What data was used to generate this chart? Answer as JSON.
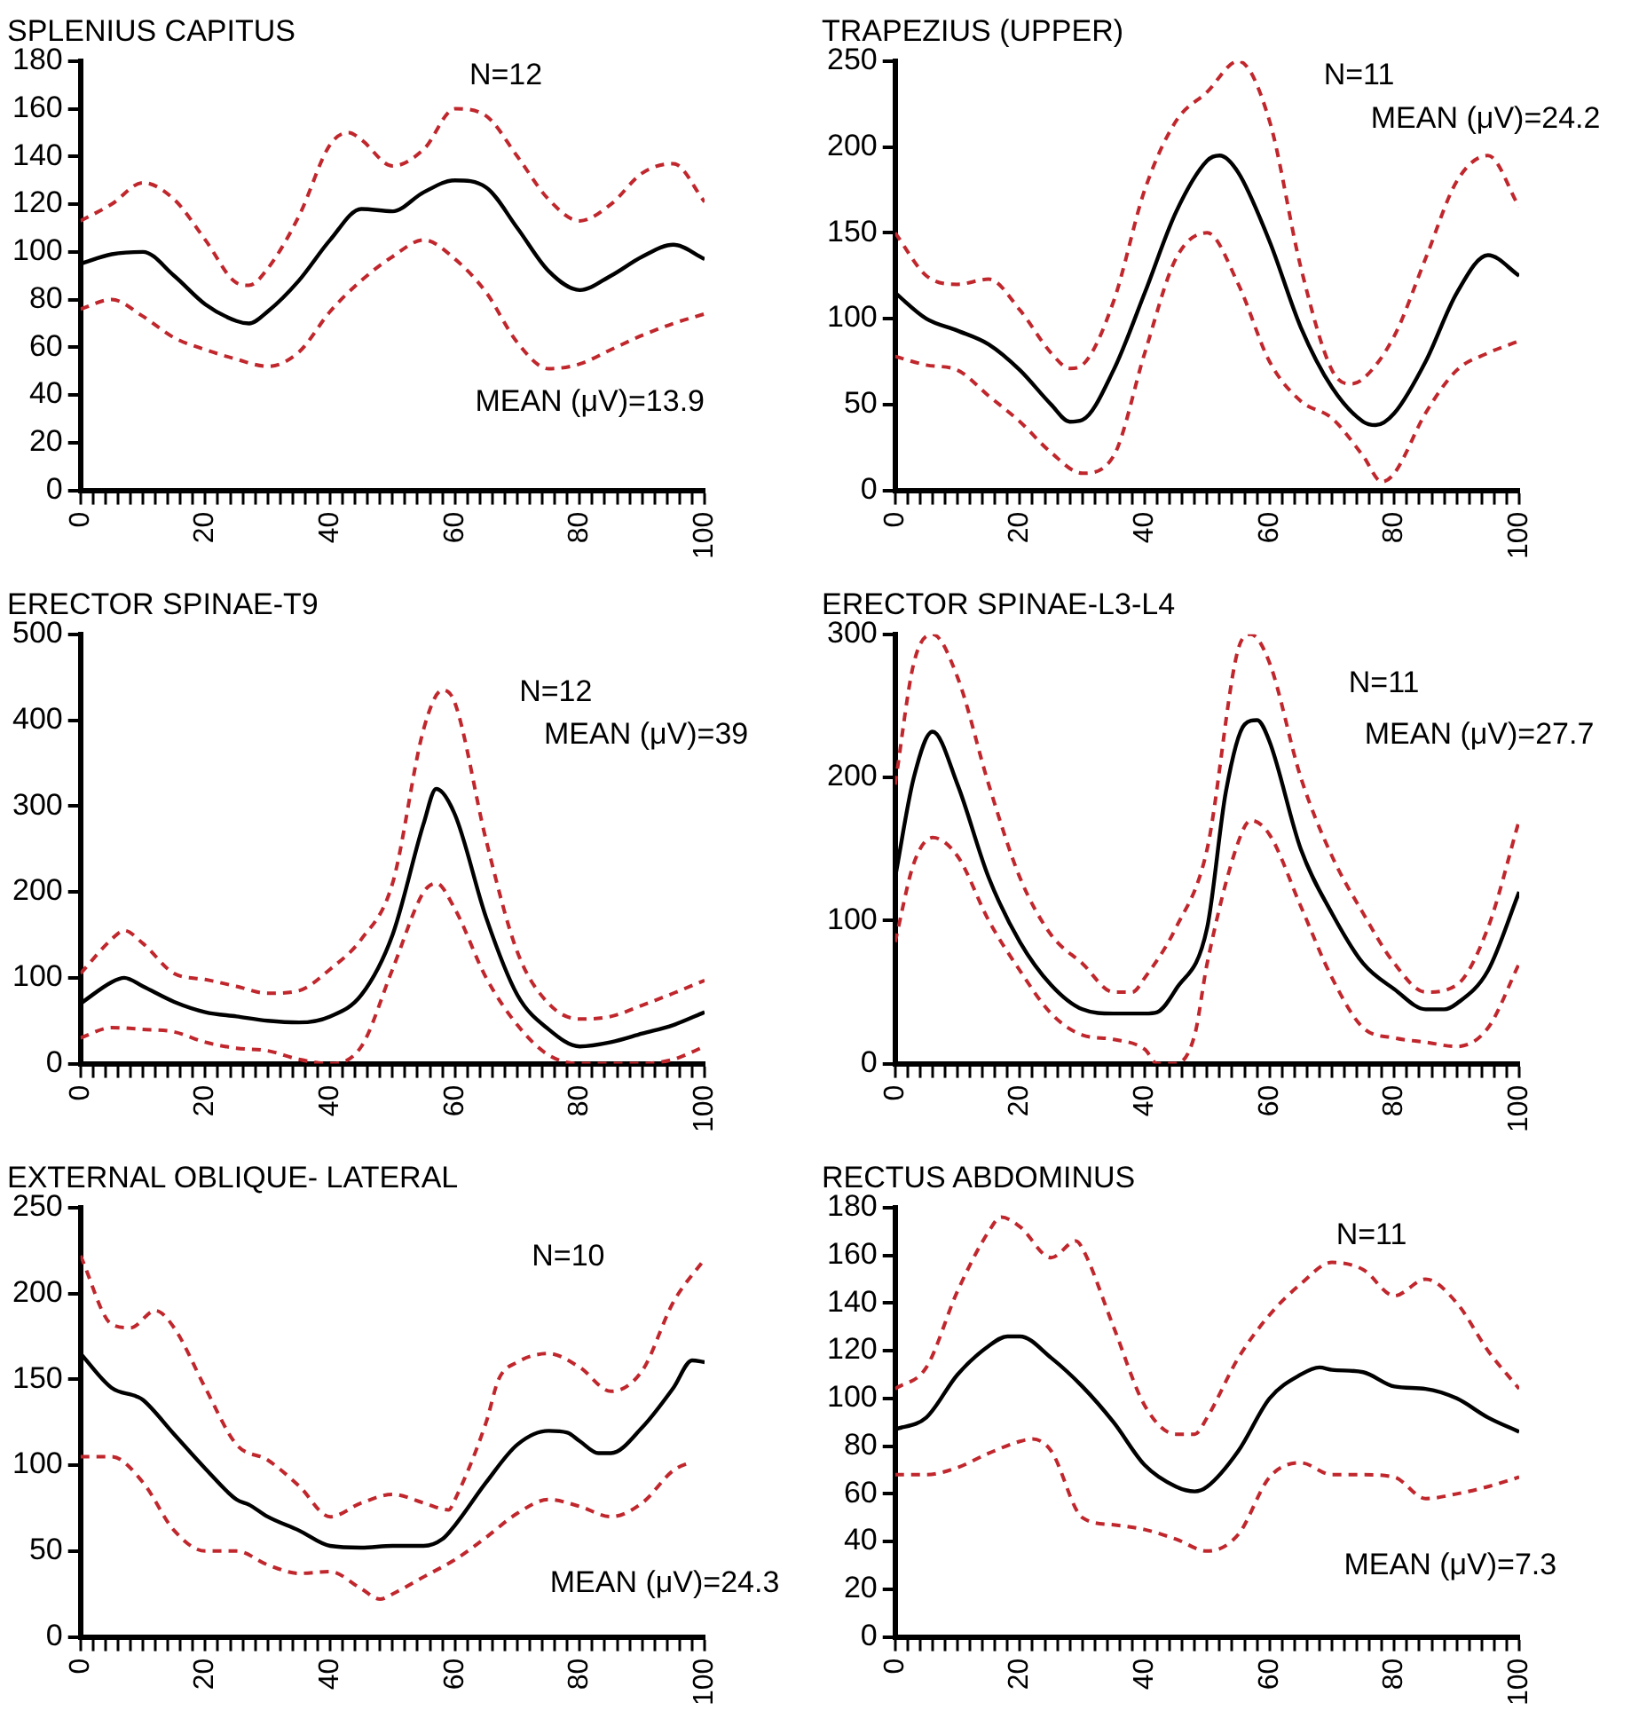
{
  "chart_data": [
    {
      "type": "line",
      "title": "SPLENIUS CAPITUS",
      "annotations": [
        "N=12",
        "MEAN (μV)=13.9"
      ],
      "xlim": [
        0,
        100
      ],
      "ylim": [
        0,
        180
      ],
      "yticks": [
        0,
        20,
        40,
        60,
        80,
        100,
        120,
        140,
        160,
        180
      ],
      "xticks": [
        0,
        {
          "value": 2,
          "label": null
        },
        {
          "value": 4,
          "label": null
        },
        {
          "value": 6,
          "label": null
        },
        {
          "value": 8,
          "label": null
        },
        {
          "value": 10,
          "label": null
        },
        {
          "value": 12,
          "label": null
        },
        {
          "value": 14,
          "label": null
        },
        {
          "value": 16,
          "label": null
        },
        {
          "value": 18,
          "label": null
        },
        20,
        {
          "value": 22,
          "label": null
        },
        {
          "value": 24,
          "label": null
        },
        {
          "value": 26,
          "label": null
        },
        {
          "value": 28,
          "label": null
        },
        {
          "value": 30,
          "label": null
        },
        {
          "value": 32,
          "label": null
        },
        {
          "value": 34,
          "label": null
        },
        {
          "value": 36,
          "label": null
        },
        {
          "value": 38,
          "label": null
        },
        40,
        {
          "value": 42,
          "label": null
        },
        {
          "value": 44,
          "label": null
        },
        {
          "value": 46,
          "label": null
        },
        {
          "value": 48,
          "label": null
        },
        {
          "value": 50,
          "label": null
        },
        {
          "value": 52,
          "label": null
        },
        {
          "value": 54,
          "label": null
        },
        {
          "value": 56,
          "label": null
        },
        {
          "value": 58,
          "label": null
        },
        60,
        {
          "value": 62,
          "label": null
        },
        {
          "value": 64,
          "label": null
        },
        {
          "value": 66,
          "label": null
        },
        {
          "value": 68,
          "label": null
        },
        {
          "value": 70,
          "label": null
        },
        {
          "value": 72,
          "label": null
        },
        {
          "value": 74,
          "label": null
        },
        {
          "value": 76,
          "label": null
        },
        {
          "value": 78,
          "label": null
        },
        80,
        {
          "value": 82,
          "label": null
        },
        {
          "value": 84,
          "label": null
        },
        {
          "value": 86,
          "label": null
        },
        {
          "value": 88,
          "label": null
        },
        {
          "value": 90,
          "label": null
        },
        {
          "value": 92,
          "label": null
        },
        {
          "value": 94,
          "label": null
        },
        {
          "value": 96,
          "label": null
        },
        {
          "value": 98,
          "label": null
        },
        100
      ],
      "grid": false,
      "legend": false,
      "marker": "none",
      "series": [
        {
          "color": "#000000",
          "line_style": "solid",
          "x": [
            0,
            5,
            10,
            15,
            20,
            25,
            27,
            30,
            35,
            40,
            45,
            50,
            55,
            60,
            65,
            70,
            75,
            80,
            85,
            90,
            95,
            100
          ],
          "values": [
            95,
            99,
            100,
            90,
            78,
            71,
            70,
            75,
            88,
            105,
            118,
            117,
            125,
            130,
            127,
            110,
            92,
            84,
            90,
            98,
            103,
            97
          ]
        },
        {
          "color": "#c0272d",
          "line_style": "dashed",
          "x": [
            0,
            5,
            10,
            15,
            20,
            25,
            27,
            30,
            35,
            40,
            43,
            45,
            50,
            55,
            60,
            65,
            70,
            75,
            80,
            85,
            90,
            95,
            100
          ],
          "values": [
            113,
            120,
            129,
            122,
            105,
            87,
            86,
            93,
            115,
            145,
            150,
            147,
            136,
            143,
            160,
            157,
            140,
            122,
            113,
            120,
            133,
            137,
            121
          ]
        },
        {
          "color": "#c0272d",
          "line_style": "dashed",
          "x": [
            0,
            5,
            10,
            15,
            20,
            25,
            30,
            35,
            40,
            45,
            50,
            55,
            60,
            65,
            70,
            75,
            80,
            85,
            90,
            95,
            100
          ],
          "values": [
            76,
            80,
            73,
            64,
            59,
            55,
            52,
            58,
            75,
            88,
            98,
            105,
            97,
            83,
            62,
            51,
            53,
            59,
            65,
            70,
            74
          ]
        }
      ]
    },
    {
      "type": "line",
      "title": "TRAPEZIUS (UPPER)",
      "annotations": [
        "N=11",
        "MEAN (μV)=24.2"
      ],
      "xlim": [
        0,
        100
      ],
      "ylim": [
        0,
        250
      ],
      "yticks": [
        0,
        50,
        100,
        150,
        200,
        250
      ],
      "xticks": [
        0,
        {
          "value": 2,
          "label": null
        },
        {
          "value": 4,
          "label": null
        },
        {
          "value": 6,
          "label": null
        },
        {
          "value": 8,
          "label": null
        },
        {
          "value": 10,
          "label": null
        },
        {
          "value": 12,
          "label": null
        },
        {
          "value": 14,
          "label": null
        },
        {
          "value": 16,
          "label": null
        },
        {
          "value": 18,
          "label": null
        },
        20,
        {
          "value": 22,
          "label": null
        },
        {
          "value": 24,
          "label": null
        },
        {
          "value": 26,
          "label": null
        },
        {
          "value": 28,
          "label": null
        },
        {
          "value": 30,
          "label": null
        },
        {
          "value": 32,
          "label": null
        },
        {
          "value": 34,
          "label": null
        },
        {
          "value": 36,
          "label": null
        },
        {
          "value": 38,
          "label": null
        },
        40,
        {
          "value": 42,
          "label": null
        },
        {
          "value": 44,
          "label": null
        },
        {
          "value": 46,
          "label": null
        },
        {
          "value": 48,
          "label": null
        },
        {
          "value": 50,
          "label": null
        },
        {
          "value": 52,
          "label": null
        },
        {
          "value": 54,
          "label": null
        },
        {
          "value": 56,
          "label": null
        },
        {
          "value": 58,
          "label": null
        },
        60,
        {
          "value": 62,
          "label": null
        },
        {
          "value": 64,
          "label": null
        },
        {
          "value": 66,
          "label": null
        },
        {
          "value": 68,
          "label": null
        },
        {
          "value": 70,
          "label": null
        },
        {
          "value": 72,
          "label": null
        },
        {
          "value": 74,
          "label": null
        },
        {
          "value": 76,
          "label": null
        },
        {
          "value": 78,
          "label": null
        },
        80,
        {
          "value": 82,
          "label": null
        },
        {
          "value": 84,
          "label": null
        },
        {
          "value": 86,
          "label": null
        },
        {
          "value": 88,
          "label": null
        },
        {
          "value": 90,
          "label": null
        },
        {
          "value": 92,
          "label": null
        },
        {
          "value": 94,
          "label": null
        },
        {
          "value": 96,
          "label": null
        },
        {
          "value": 98,
          "label": null
        },
        100
      ],
      "grid": false,
      "legend": false,
      "marker": "none",
      "series": [
        {
          "color": "#000000",
          "line_style": "solid",
          "x": [
            0,
            5,
            10,
            15,
            20,
            25,
            28,
            30,
            35,
            40,
            45,
            50,
            52,
            55,
            60,
            65,
            70,
            75,
            77,
            80,
            85,
            90,
            95,
            100
          ],
          "values": [
            115,
            100,
            93,
            85,
            70,
            50,
            40,
            41,
            70,
            115,
            162,
            192,
            195,
            185,
            145,
            95,
            60,
            40,
            38,
            45,
            75,
            115,
            137,
            125
          ]
        },
        {
          "color": "#c0272d",
          "line_style": "dashed",
          "x": [
            0,
            5,
            10,
            15,
            20,
            25,
            28,
            30,
            35,
            40,
            45,
            50,
            55,
            60,
            65,
            70,
            73,
            75,
            80,
            85,
            90,
            95,
            100
          ],
          "values": [
            150,
            125,
            120,
            123,
            105,
            80,
            71,
            73,
            110,
            175,
            215,
            232,
            250,
            215,
            130,
            70,
            62,
            65,
            90,
            135,
            180,
            195,
            165
          ]
        },
        {
          "color": "#c0272d",
          "line_style": "dashed",
          "x": [
            0,
            5,
            10,
            15,
            20,
            25,
            30,
            35,
            40,
            45,
            50,
            55,
            60,
            65,
            70,
            75,
            78,
            80,
            85,
            90,
            95,
            100
          ],
          "values": [
            78,
            73,
            70,
            55,
            40,
            22,
            10,
            20,
            80,
            135,
            150,
            120,
            75,
            52,
            42,
            20,
            5,
            10,
            45,
            70,
            80,
            87
          ]
        }
      ]
    },
    {
      "type": "line",
      "title": "ERECTOR SPINAE-T9",
      "annotations": [
        "N=12",
        "MEAN (μV)=39"
      ],
      "xlim": [
        0,
        100
      ],
      "ylim": [
        0,
        500
      ],
      "yticks": [
        0,
        100,
        200,
        300,
        400,
        500
      ],
      "xticks": [
        0,
        {
          "value": 2,
          "label": null
        },
        {
          "value": 4,
          "label": null
        },
        {
          "value": 6,
          "label": null
        },
        {
          "value": 8,
          "label": null
        },
        {
          "value": 10,
          "label": null
        },
        {
          "value": 12,
          "label": null
        },
        {
          "value": 14,
          "label": null
        },
        {
          "value": 16,
          "label": null
        },
        {
          "value": 18,
          "label": null
        },
        20,
        {
          "value": 22,
          "label": null
        },
        {
          "value": 24,
          "label": null
        },
        {
          "value": 26,
          "label": null
        },
        {
          "value": 28,
          "label": null
        },
        {
          "value": 30,
          "label": null
        },
        {
          "value": 32,
          "label": null
        },
        {
          "value": 34,
          "label": null
        },
        {
          "value": 36,
          "label": null
        },
        {
          "value": 38,
          "label": null
        },
        40,
        {
          "value": 42,
          "label": null
        },
        {
          "value": 44,
          "label": null
        },
        {
          "value": 46,
          "label": null
        },
        {
          "value": 48,
          "label": null
        },
        {
          "value": 50,
          "label": null
        },
        {
          "value": 52,
          "label": null
        },
        {
          "value": 54,
          "label": null
        },
        {
          "value": 56,
          "label": null
        },
        {
          "value": 58,
          "label": null
        },
        60,
        {
          "value": 62,
          "label": null
        },
        {
          "value": 64,
          "label": null
        },
        {
          "value": 66,
          "label": null
        },
        {
          "value": 68,
          "label": null
        },
        {
          "value": 70,
          "label": null
        },
        {
          "value": 72,
          "label": null
        },
        {
          "value": 74,
          "label": null
        },
        {
          "value": 76,
          "label": null
        },
        {
          "value": 78,
          "label": null
        },
        80,
        {
          "value": 82,
          "label": null
        },
        {
          "value": 84,
          "label": null
        },
        {
          "value": 86,
          "label": null
        },
        {
          "value": 88,
          "label": null
        },
        {
          "value": 90,
          "label": null
        },
        {
          "value": 92,
          "label": null
        },
        {
          "value": 94,
          "label": null
        },
        {
          "value": 96,
          "label": null
        },
        {
          "value": 98,
          "label": null
        },
        100
      ],
      "grid": false,
      "legend": false,
      "marker": "none",
      "series": [
        {
          "color": "#000000",
          "line_style": "solid",
          "x": [
            0,
            5,
            7,
            10,
            15,
            20,
            25,
            30,
            35,
            40,
            45,
            50,
            55,
            57,
            60,
            65,
            70,
            75,
            80,
            85,
            90,
            95,
            100
          ],
          "values": [
            70,
            95,
            100,
            90,
            72,
            60,
            55,
            50,
            48,
            55,
            80,
            150,
            280,
            320,
            290,
            170,
            80,
            40,
            20,
            25,
            35,
            45,
            60
          ]
        },
        {
          "color": "#c0272d",
          "line_style": "dashed",
          "x": [
            0,
            5,
            7,
            10,
            15,
            20,
            25,
            30,
            35,
            40,
            45,
            50,
            55,
            58,
            60,
            65,
            70,
            75,
            80,
            85,
            90,
            95,
            100
          ],
          "values": [
            105,
            145,
            155,
            140,
            105,
            98,
            90,
            82,
            85,
            110,
            145,
            210,
            390,
            435,
            420,
            260,
            130,
            70,
            52,
            55,
            68,
            82,
            97
          ]
        },
        {
          "color": "#c0272d",
          "line_style": "dashed",
          "x": [
            0,
            5,
            10,
            15,
            20,
            25,
            30,
            35,
            40,
            45,
            50,
            55,
            57,
            60,
            65,
            70,
            75,
            80,
            85,
            90,
            95,
            100
          ],
          "values": [
            30,
            42,
            40,
            37,
            25,
            18,
            15,
            5,
            0,
            20,
            110,
            200,
            210,
            180,
            100,
            45,
            10,
            0,
            0,
            0,
            5,
            20
          ]
        }
      ]
    },
    {
      "type": "line",
      "title": "ERECTOR SPINAE-L3-L4",
      "annotations": [
        "N=11",
        "MEAN (μV)=27.7"
      ],
      "xlim": [
        0,
        100
      ],
      "ylim": [
        0,
        300
      ],
      "yticks": [
        0,
        100,
        200,
        300
      ],
      "xticks": [
        0,
        {
          "value": 2,
          "label": null
        },
        {
          "value": 4,
          "label": null
        },
        {
          "value": 6,
          "label": null
        },
        {
          "value": 8,
          "label": null
        },
        {
          "value": 10,
          "label": null
        },
        {
          "value": 12,
          "label": null
        },
        {
          "value": 14,
          "label": null
        },
        {
          "value": 16,
          "label": null
        },
        {
          "value": 18,
          "label": null
        },
        20,
        {
          "value": 22,
          "label": null
        },
        {
          "value": 24,
          "label": null
        },
        {
          "value": 26,
          "label": null
        },
        {
          "value": 28,
          "label": null
        },
        {
          "value": 30,
          "label": null
        },
        {
          "value": 32,
          "label": null
        },
        {
          "value": 34,
          "label": null
        },
        {
          "value": 36,
          "label": null
        },
        {
          "value": 38,
          "label": null
        },
        40,
        {
          "value": 42,
          "label": null
        },
        {
          "value": 44,
          "label": null
        },
        {
          "value": 46,
          "label": null
        },
        {
          "value": 48,
          "label": null
        },
        {
          "value": 50,
          "label": null
        },
        {
          "value": 52,
          "label": null
        },
        {
          "value": 54,
          "label": null
        },
        {
          "value": 56,
          "label": null
        },
        {
          "value": 58,
          "label": null
        },
        60,
        {
          "value": 62,
          "label": null
        },
        {
          "value": 64,
          "label": null
        },
        {
          "value": 66,
          "label": null
        },
        {
          "value": 68,
          "label": null
        },
        {
          "value": 70,
          "label": null
        },
        {
          "value": 72,
          "label": null
        },
        {
          "value": 74,
          "label": null
        },
        {
          "value": 76,
          "label": null
        },
        {
          "value": 78,
          "label": null
        },
        80,
        {
          "value": 82,
          "label": null
        },
        {
          "value": 84,
          "label": null
        },
        {
          "value": 86,
          "label": null
        },
        {
          "value": 88,
          "label": null
        },
        {
          "value": 90,
          "label": null
        },
        {
          "value": 92,
          "label": null
        },
        {
          "value": 94,
          "label": null
        },
        {
          "value": 96,
          "label": null
        },
        {
          "value": 98,
          "label": null
        },
        100
      ],
      "grid": false,
      "legend": false,
      "marker": "none",
      "series": [
        {
          "color": "#000000",
          "line_style": "solid",
          "x": [
            0,
            3,
            6,
            10,
            15,
            20,
            25,
            30,
            35,
            40,
            42,
            45,
            50,
            53,
            56,
            58,
            60,
            65,
            70,
            75,
            80,
            85,
            88,
            90,
            95,
            100
          ],
          "values": [
            130,
            200,
            232,
            195,
            130,
            85,
            55,
            38,
            35,
            35,
            36,
            52,
            95,
            190,
            237,
            240,
            225,
            150,
            105,
            70,
            52,
            38,
            38,
            42,
            65,
            120
          ]
        },
        {
          "color": "#c0272d",
          "line_style": "dashed",
          "x": [
            0,
            3,
            6,
            10,
            15,
            20,
            25,
            30,
            35,
            38,
            40,
            45,
            50,
            55,
            57,
            60,
            65,
            70,
            75,
            80,
            85,
            90,
            95,
            100
          ],
          "values": [
            195,
            280,
            300,
            270,
            195,
            130,
            90,
            70,
            50,
            50,
            60,
            95,
            150,
            290,
            300,
            280,
            200,
            145,
            105,
            70,
            50,
            55,
            95,
            170
          ]
        },
        {
          "color": "#c0272d",
          "line_style": "dashed",
          "x": [
            0,
            3,
            6,
            10,
            15,
            20,
            25,
            30,
            35,
            40,
            42,
            45,
            48,
            50,
            55,
            57,
            60,
            65,
            70,
            75,
            80,
            85,
            90,
            95,
            100
          ],
          "values": [
            85,
            140,
            158,
            145,
            100,
            65,
            35,
            20,
            17,
            10,
            0,
            0,
            20,
            70,
            155,
            170,
            160,
            110,
            60,
            25,
            18,
            15,
            12,
            25,
            70
          ]
        }
      ]
    },
    {
      "type": "line",
      "title": "EXTERNAL OBLIQUE- LATERAL",
      "annotations": [
        "N=10",
        "MEAN (μV)=24.3"
      ],
      "xlim": [
        0,
        100
      ],
      "ylim": [
        0,
        250
      ],
      "yticks": [
        0,
        50,
        100,
        150,
        200,
        250
      ],
      "xticks": [
        0,
        {
          "value": 2,
          "label": null
        },
        {
          "value": 4,
          "label": null
        },
        {
          "value": 6,
          "label": null
        },
        {
          "value": 8,
          "label": null
        },
        {
          "value": 10,
          "label": null
        },
        {
          "value": 12,
          "label": null
        },
        {
          "value": 14,
          "label": null
        },
        {
          "value": 16,
          "label": null
        },
        {
          "value": 18,
          "label": null
        },
        20,
        {
          "value": 22,
          "label": null
        },
        {
          "value": 24,
          "label": null
        },
        {
          "value": 26,
          "label": null
        },
        {
          "value": 28,
          "label": null
        },
        {
          "value": 30,
          "label": null
        },
        {
          "value": 32,
          "label": null
        },
        {
          "value": 34,
          "label": null
        },
        {
          "value": 36,
          "label": null
        },
        {
          "value": 38,
          "label": null
        },
        40,
        {
          "value": 42,
          "label": null
        },
        {
          "value": 44,
          "label": null
        },
        {
          "value": 46,
          "label": null
        },
        {
          "value": 48,
          "label": null
        },
        {
          "value": 50,
          "label": null
        },
        {
          "value": 52,
          "label": null
        },
        {
          "value": 54,
          "label": null
        },
        {
          "value": 56,
          "label": null
        },
        {
          "value": 58,
          "label": null
        },
        60,
        {
          "value": 62,
          "label": null
        },
        {
          "value": 64,
          "label": null
        },
        {
          "value": 66,
          "label": null
        },
        {
          "value": 68,
          "label": null
        },
        {
          "value": 70,
          "label": null
        },
        {
          "value": 72,
          "label": null
        },
        {
          "value": 74,
          "label": null
        },
        {
          "value": 76,
          "label": null
        },
        {
          "value": 78,
          "label": null
        },
        80,
        {
          "value": 82,
          "label": null
        },
        {
          "value": 84,
          "label": null
        },
        {
          "value": 86,
          "label": null
        },
        {
          "value": 88,
          "label": null
        },
        {
          "value": 90,
          "label": null
        },
        {
          "value": 92,
          "label": null
        },
        {
          "value": 94,
          "label": null
        },
        {
          "value": 96,
          "label": null
        },
        {
          "value": 98,
          "label": null
        },
        100
      ],
      "grid": false,
      "legend": false,
      "marker": "none",
      "series": [
        {
          "color": "#000000",
          "line_style": "solid",
          "x": [
            0,
            5,
            9,
            10,
            15,
            20,
            25,
            27,
            30,
            35,
            40,
            45,
            50,
            55,
            58,
            60,
            65,
            70,
            75,
            78,
            80,
            83,
            85,
            90,
            95,
            98,
            100
          ],
          "values": [
            165,
            145,
            140,
            138,
            118,
            98,
            80,
            77,
            70,
            62,
            53,
            52,
            53,
            53,
            57,
            65,
            90,
            112,
            120,
            119,
            114,
            107,
            107,
            122,
            145,
            161,
            160
          ]
        },
        {
          "color": "#c0272d",
          "line_style": "dashed",
          "x": [
            0,
            5,
            8,
            12,
            15,
            20,
            25,
            30,
            35,
            40,
            45,
            50,
            55,
            59,
            60,
            65,
            67,
            70,
            75,
            80,
            85,
            90,
            95,
            100
          ],
          "values": [
            222,
            182,
            180,
            190,
            180,
            145,
            112,
            103,
            88,
            70,
            78,
            83,
            78,
            74,
            80,
            125,
            150,
            160,
            165,
            157,
            143,
            155,
            195,
            220
          ]
        },
        {
          "color": "#c0272d",
          "line_style": "dashed",
          "x": [
            0,
            5,
            10,
            15,
            20,
            25,
            30,
            35,
            40,
            45,
            48,
            50,
            55,
            60,
            65,
            70,
            75,
            80,
            85,
            90,
            95,
            98
          ],
          "values": [
            105,
            105,
            90,
            62,
            50,
            50,
            42,
            37,
            38,
            28,
            22,
            25,
            35,
            45,
            58,
            72,
            80,
            76,
            70,
            78,
            97,
            102
          ]
        }
      ]
    },
    {
      "type": "line",
      "title": "RECTUS ABDOMINUS",
      "annotations": [
        "N=11",
        "MEAN (μV)=7.3"
      ],
      "xlim": [
        0,
        100
      ],
      "ylim": [
        0,
        180
      ],
      "yticks": [
        0,
        20,
        40,
        60,
        80,
        100,
        120,
        140,
        160,
        180
      ],
      "xticks": [
        0,
        {
          "value": 2,
          "label": null
        },
        {
          "value": 4,
          "label": null
        },
        {
          "value": 6,
          "label": null
        },
        {
          "value": 8,
          "label": null
        },
        {
          "value": 10,
          "label": null
        },
        {
          "value": 12,
          "label": null
        },
        {
          "value": 14,
          "label": null
        },
        {
          "value": 16,
          "label": null
        },
        {
          "value": 18,
          "label": null
        },
        20,
        {
          "value": 22,
          "label": null
        },
        {
          "value": 24,
          "label": null
        },
        {
          "value": 26,
          "label": null
        },
        {
          "value": 28,
          "label": null
        },
        {
          "value": 30,
          "label": null
        },
        {
          "value": 32,
          "label": null
        },
        {
          "value": 34,
          "label": null
        },
        {
          "value": 36,
          "label": null
        },
        {
          "value": 38,
          "label": null
        },
        40,
        {
          "value": 42,
          "label": null
        },
        {
          "value": 44,
          "label": null
        },
        {
          "value": 46,
          "label": null
        },
        {
          "value": 48,
          "label": null
        },
        {
          "value": 50,
          "label": null
        },
        {
          "value": 52,
          "label": null
        },
        {
          "value": 54,
          "label": null
        },
        {
          "value": 56,
          "label": null
        },
        {
          "value": 58,
          "label": null
        },
        60,
        {
          "value": 62,
          "label": null
        },
        {
          "value": 64,
          "label": null
        },
        {
          "value": 66,
          "label": null
        },
        {
          "value": 68,
          "label": null
        },
        {
          "value": 70,
          "label": null
        },
        {
          "value": 72,
          "label": null
        },
        {
          "value": 74,
          "label": null
        },
        {
          "value": 76,
          "label": null
        },
        {
          "value": 78,
          "label": null
        },
        80,
        {
          "value": 82,
          "label": null
        },
        {
          "value": 84,
          "label": null
        },
        {
          "value": 86,
          "label": null
        },
        {
          "value": 88,
          "label": null
        },
        {
          "value": 90,
          "label": null
        },
        {
          "value": 92,
          "label": null
        },
        {
          "value": 94,
          "label": null
        },
        {
          "value": 96,
          "label": null
        },
        {
          "value": 98,
          "label": null
        },
        100
      ],
      "grid": false,
      "legend": false,
      "marker": "none",
      "series": [
        {
          "color": "#000000",
          "line_style": "solid",
          "x": [
            0,
            5,
            10,
            15,
            18,
            20,
            25,
            30,
            35,
            40,
            45,
            48,
            50,
            55,
            60,
            65,
            68,
            70,
            75,
            80,
            85,
            90,
            95,
            100
          ],
          "values": [
            87,
            92,
            110,
            122,
            126,
            126,
            117,
            105,
            90,
            72,
            63,
            61,
            63,
            78,
            100,
            110,
            113,
            112,
            111,
            105,
            104,
            100,
            92,
            86
          ]
        },
        {
          "color": "#c0272d",
          "line_style": "dashed",
          "x": [
            0,
            5,
            10,
            15,
            17,
            20,
            25,
            29,
            30,
            35,
            40,
            45,
            48,
            50,
            55,
            60,
            65,
            70,
            75,
            80,
            85,
            90,
            95,
            100
          ],
          "values": [
            104,
            113,
            145,
            170,
            176,
            172,
            159,
            166,
            163,
            130,
            97,
            85,
            85,
            92,
            117,
            135,
            148,
            157,
            154,
            143,
            150,
            140,
            120,
            104
          ]
        },
        {
          "color": "#c0272d",
          "line_style": "dashed",
          "x": [
            0,
            5,
            10,
            15,
            20,
            22,
            25,
            30,
            35,
            40,
            45,
            50,
            55,
            60,
            65,
            70,
            75,
            80,
            85,
            90,
            95,
            100
          ],
          "values": [
            68,
            68,
            71,
            77,
            82,
            83,
            78,
            50,
            47,
            45,
            41,
            36,
            43,
            67,
            73,
            68,
            68,
            67,
            58,
            60,
            63,
            67
          ]
        }
      ]
    }
  ]
}
